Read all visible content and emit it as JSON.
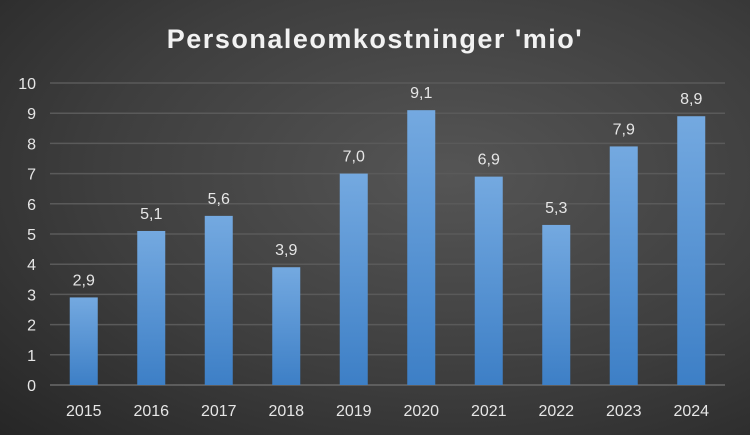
{
  "chart_data": {
    "type": "bar",
    "title": "Personaleomkostninger 'mio'",
    "categories": [
      "2015",
      "2016",
      "2017",
      "2018",
      "2019",
      "2020",
      "2021",
      "2022",
      "2023",
      "2024"
    ],
    "values": [
      2.9,
      5.1,
      5.6,
      3.9,
      7.0,
      9.1,
      6.9,
      5.3,
      7.9,
      8.9
    ],
    "data_labels": [
      "2,9",
      "5,1",
      "5,6",
      "3,9",
      "7,0",
      "9,1",
      "6,9",
      "5,3",
      "7,9",
      "8,9"
    ],
    "ylim": [
      0,
      10
    ],
    "y_ticks": [
      "0",
      "1",
      "2",
      "3",
      "4",
      "5",
      "6",
      "7",
      "8",
      "9",
      "10"
    ],
    "grid": true,
    "legend": "none",
    "bar_color_top": "#74a9e0",
    "bar_color_bottom": "#3d7fc6"
  }
}
